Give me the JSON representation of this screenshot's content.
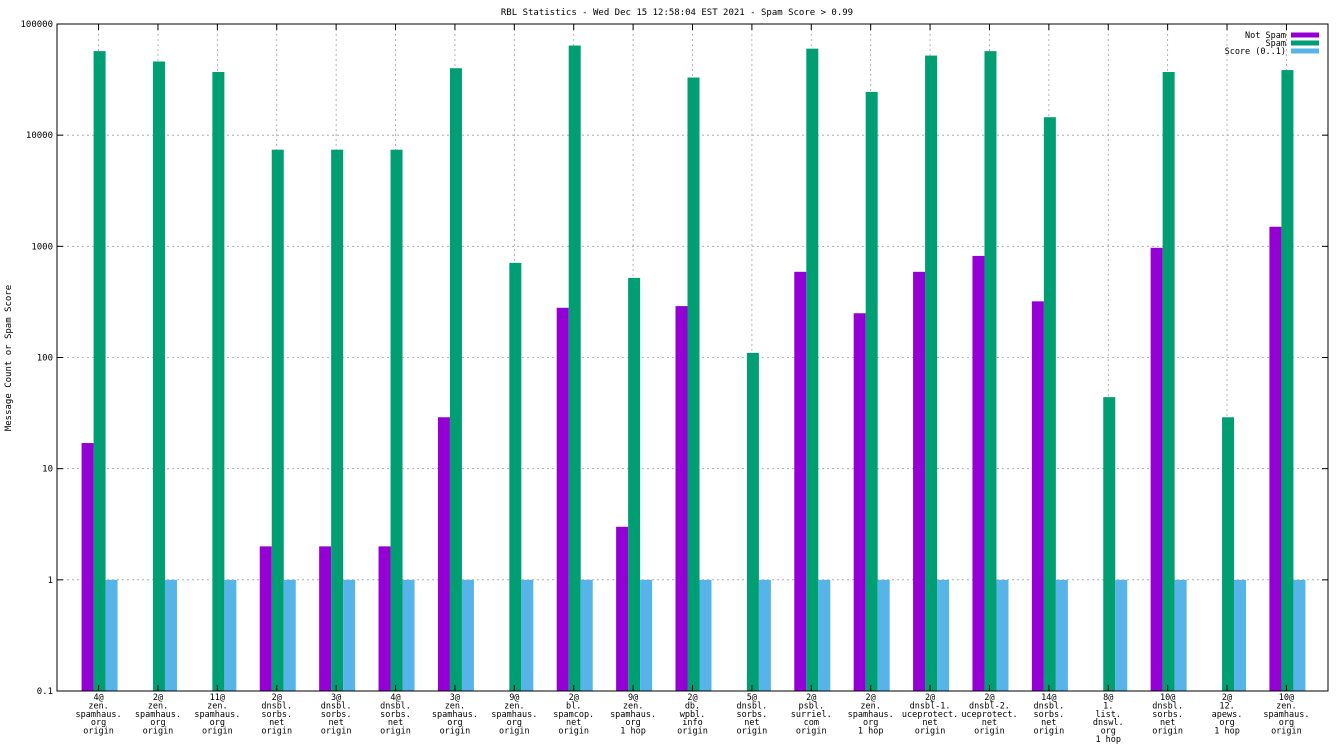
{
  "chart_data": {
    "type": "bar",
    "title": "RBL Statistics - Wed Dec 15 12:58:04 EST 2021 - Spam Score > 0.99",
    "ylabel": "Message Count or Spam Score",
    "xlabel": "",
    "yscale": "log",
    "ylim": [
      0.1,
      100000
    ],
    "ytick_values": [
      0.1,
      1,
      10,
      100,
      1000,
      10000,
      100000
    ],
    "ytick_labels": [
      "0.1",
      "1",
      "10",
      "100",
      "1000",
      "10000",
      "100000"
    ],
    "grid": true,
    "legend_position": "top-right",
    "categories": [
      [
        "4@",
        "zen.",
        "spamhaus.",
        "org",
        "origin"
      ],
      [
        "2@",
        "zen.",
        "spamhaus.",
        "org",
        "origin"
      ],
      [
        "11@",
        "zen.",
        "spamhaus.",
        "org",
        "origin"
      ],
      [
        "2@",
        "dnsbl.",
        "sorbs.",
        "net",
        "origin"
      ],
      [
        "3@",
        "dnsbl.",
        "sorbs.",
        "net",
        "origin"
      ],
      [
        "4@",
        "dnsbl.",
        "sorbs.",
        "net",
        "origin"
      ],
      [
        "3@",
        "zen.",
        "spamhaus.",
        "org",
        "origin"
      ],
      [
        "9@",
        "zen.",
        "spamhaus.",
        "org",
        "origin"
      ],
      [
        "2@",
        "bl.",
        "spamcop.",
        "net",
        "origin"
      ],
      [
        "9@",
        "zen.",
        "spamhaus.",
        "org",
        "1 hop"
      ],
      [
        "2@",
        "db.",
        "wpbl.",
        "info",
        "origin"
      ],
      [
        "5@",
        "dnsbl.",
        "sorbs.",
        "net",
        "origin"
      ],
      [
        "2@",
        "psbl.",
        "surriel.",
        "com",
        "origin"
      ],
      [
        "2@",
        "zen.",
        "spamhaus.",
        "org",
        "1 hop"
      ],
      [
        "2@",
        "dnsbl-1.",
        "uceprotect.",
        "net",
        "origin"
      ],
      [
        "2@",
        "dnsbl-2.",
        "uceprotect.",
        "net",
        "origin"
      ],
      [
        "14@",
        "dnsbl.",
        "sorbs.",
        "net",
        "origin"
      ],
      [
        "8@",
        "1.",
        "list.",
        "dnswl.",
        "org",
        "1 hop"
      ],
      [
        "10@",
        "dnsbl.",
        "sorbs.",
        "net",
        "origin"
      ],
      [
        "2@",
        "12.",
        "apews.",
        "org",
        "1 hop"
      ],
      [
        "10@",
        "zen.",
        "spamhaus.",
        "org",
        "origin"
      ]
    ],
    "series": [
      {
        "name": "Not Spam",
        "color": "#9400d3",
        "values": [
          17,
          null,
          null,
          2,
          2,
          2,
          29,
          null,
          280,
          3,
          290,
          null,
          590,
          250,
          590,
          820,
          320,
          null,
          970,
          null,
          1500
        ]
      },
      {
        "name": "Spam",
        "color": "#009e73",
        "values": [
          57000,
          46000,
          37000,
          7400,
          7400,
          7400,
          40000,
          710,
          64000,
          520,
          33000,
          110,
          60000,
          24500,
          52000,
          57000,
          14500,
          44,
          37000,
          29,
          38500
        ]
      },
      {
        "name": "Score (0..1)",
        "color": "#56b4e9",
        "values": [
          1,
          1,
          1,
          1,
          1,
          1,
          1,
          1,
          1,
          1,
          1,
          1,
          1,
          1,
          1,
          1,
          1,
          1,
          1,
          1,
          1
        ]
      }
    ]
  }
}
